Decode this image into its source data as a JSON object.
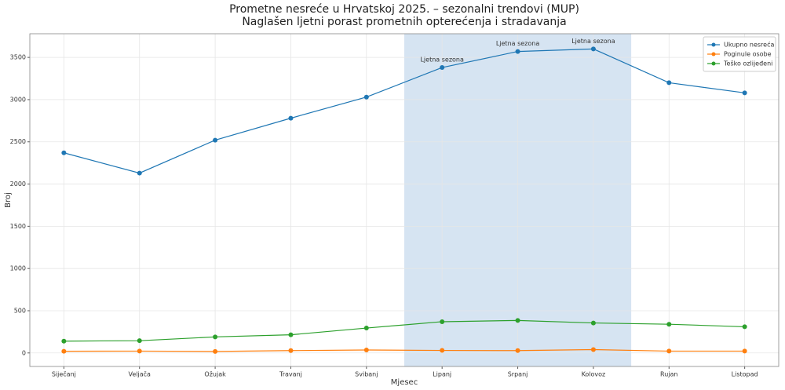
{
  "chart_data": {
    "type": "line",
    "title": "Prometne nesreće u Hrvatskoj 2025. – sezonalni trendovi (MUP)",
    "subtitle": "Naglašen ljetni porast prometnih opterećenja i stradavanja",
    "x_label": "Mjesec",
    "y_label": "Broj",
    "categories": [
      "Siječanj",
      "Veljača",
      "Ožujak",
      "Travanj",
      "Svibanj",
      "Lipanj",
      "Srpanj",
      "Kolovoz",
      "Rujan",
      "Listopad"
    ],
    "series": [
      {
        "name": "Ukupno nesreća",
        "color": "#1f77b4",
        "values": [
          2370,
          2130,
          2520,
          2780,
          3030,
          3380,
          3570,
          3600,
          3200,
          3080
        ]
      },
      {
        "name": "Poginule osobe",
        "color": "#ff7f0e",
        "values": [
          20,
          22,
          18,
          28,
          35,
          30,
          28,
          40,
          22,
          22
        ]
      },
      {
        "name": "Teško ozlijeđeni",
        "color": "#2ca02c",
        "values": [
          140,
          145,
          190,
          215,
          295,
          370,
          385,
          355,
          340,
          310
        ]
      }
    ],
    "annotations": [
      {
        "text": "Ljetna sezona",
        "x": "Lipanj"
      },
      {
        "text": "Ljetna sezona",
        "x": "Srpanj"
      },
      {
        "text": "Ljetna sezona",
        "x": "Kolovoz"
      }
    ],
    "highlight_span": [
      4.5,
      7.5
    ],
    "highlight_color": "#d6e4f2",
    "ylim": [
      -160,
      3780
    ],
    "yticks": [
      0,
      500,
      1000,
      1500,
      2000,
      2500,
      3000,
      3500
    ],
    "grid": true,
    "legend": "upper right"
  }
}
